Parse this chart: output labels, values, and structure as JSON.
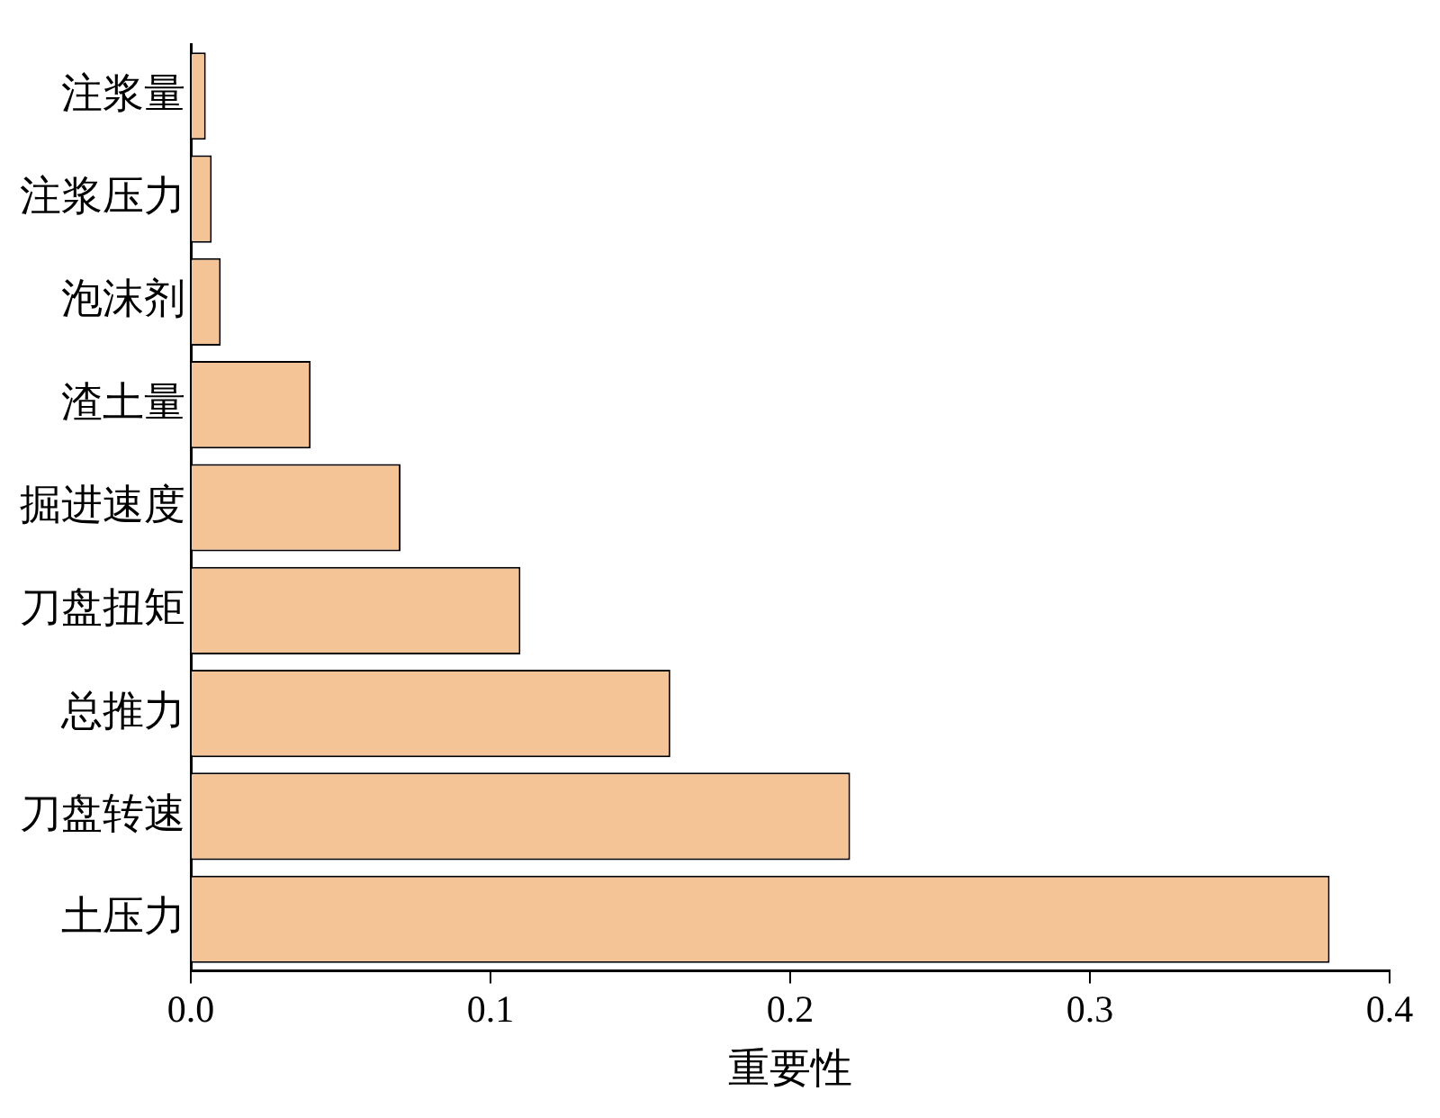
{
  "chart_data": {
    "type": "bar",
    "orientation": "horizontal",
    "xlabel": "重要性",
    "categories": [
      "注浆量",
      "注浆压力",
      "泡沫剂",
      "渣土量",
      "掘进速度",
      "刀盘扭矩",
      "总推力",
      "刀盘转速",
      "土压力"
    ],
    "values": [
      0.005,
      0.007,
      0.01,
      0.04,
      0.07,
      0.11,
      0.16,
      0.22,
      0.38
    ],
    "color": "#f5c496",
    "xlim": [
      0,
      0.4
    ],
    "xticks": [
      {
        "value": 0,
        "label": "0.0"
      },
      0.1,
      0.2,
      0.3,
      0.4
    ],
    "grid": false,
    "legend": false
  }
}
